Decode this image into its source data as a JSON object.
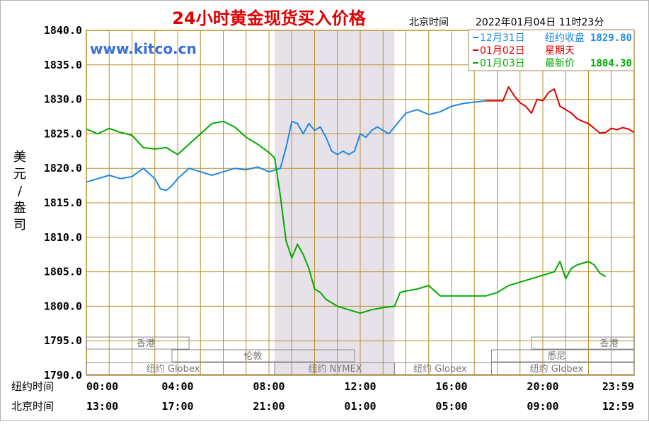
{
  "chart_data": {
    "type": "line",
    "title": "24小时黄金现货买入价格",
    "timestamp_label": "北京时间",
    "timestamp": "2022年01月04日 11时23分",
    "watermark": "www.kitco.cn",
    "ylabel": "美元/盎司",
    "ylim": [
      1790,
      1840
    ],
    "y_ticks": [
      "1840.0",
      "1835.0",
      "1830.0",
      "1825.0",
      "1820.0",
      "1815.0",
      "1810.0",
      "1805.0",
      "1800.0",
      "1795.0",
      "1790.0"
    ],
    "x_range_hours": [
      0,
      24
    ],
    "x_row_labels": [
      "纽约时间",
      "北京时间"
    ],
    "x_ticks_ny": [
      "00:00",
      "04:00",
      "08:00",
      "12:00",
      "16:00",
      "20:00",
      "23:59"
    ],
    "x_ticks_bj": [
      "13:00",
      "17:00",
      "21:00",
      "01:00",
      "05:00",
      "09:00",
      "12:59"
    ],
    "grid": true,
    "shaded_region_hours": [
      8.25,
      13.5
    ],
    "legend": {
      "placement": "top-right",
      "entries": [
        {
          "label": "12月31日",
          "note_label": "纽约收盘",
          "note_value": "1829.80",
          "color": "#1e88e5"
        },
        {
          "label": "01月02日",
          "note_label": "星期天",
          "note_value": "",
          "color": "#e00000"
        },
        {
          "label": "01月03日",
          "note_label": "最新价",
          "note_value": "1804.30",
          "color": "#00aa00"
        }
      ]
    },
    "market_bands": [
      {
        "label": "香港",
        "row": 0,
        "segments": [
          [
            0,
            4.5
          ],
          [
            19.5,
            24
          ]
        ]
      },
      {
        "label": "伦敦",
        "row": 1,
        "segments": [
          [
            3.75,
            11.75
          ],
          [
            17.75,
            24
          ]
        ]
      },
      {
        "label": "悉尼",
        "row": 1,
        "segments": []
      },
      {
        "label": "纽约 Globex",
        "row": 2,
        "segments": [
          [
            0,
            8.25
          ],
          [
            13.5,
            17.75
          ],
          [
            17.75,
            24
          ]
        ]
      },
      {
        "label": "纽约 NYMEX",
        "row": 2,
        "segments": [
          [
            8.25,
            13.5
          ]
        ]
      }
    ],
    "band_labels": [
      {
        "text": "香港",
        "hour": 2.6,
        "row": 0
      },
      {
        "text": "香港",
        "hour": 22.9,
        "row": 0
      },
      {
        "text": "伦敦",
        "hour": 7.3,
        "row": 1
      },
      {
        "text": "悉尼",
        "hour": 20.6,
        "row": 1
      },
      {
        "text": "纽约 Globex",
        "hour": 3.8,
        "row": 2
      },
      {
        "text": "纽约 NYMEX",
        "hour": 10.9,
        "row": 2
      },
      {
        "text": "纽约 Globex",
        "hour": 15.5,
        "row": 2
      },
      {
        "text": "纽约 Globex",
        "hour": 20.6,
        "row": 2
      }
    ],
    "series": [
      {
        "name": "12月31日",
        "color": "#1e88e5",
        "x": [
          0,
          0.5,
          1,
          1.5,
          2,
          2.5,
          3,
          3.25,
          3.5,
          3.75,
          4,
          4.5,
          5,
          5.5,
          6,
          6.5,
          7,
          7.5,
          8,
          8.5,
          8.75,
          9,
          9.25,
          9.5,
          9.75,
          10,
          10.25,
          10.5,
          10.75,
          11,
          11.25,
          11.5,
          11.75,
          12,
          12.25,
          12.5,
          12.75,
          13,
          13.25,
          13.5,
          13.75,
          14,
          14.5,
          15,
          15.5,
          16,
          16.5,
          17,
          17.5
        ],
        "values": [
          1818,
          1818.5,
          1819,
          1818.5,
          1818.8,
          1820,
          1818.5,
          1817,
          1816.8,
          1817.5,
          1818.5,
          1820,
          1819.5,
          1819,
          1819.5,
          1820,
          1819.8,
          1820.2,
          1819.5,
          1820,
          1823,
          1826.8,
          1826.5,
          1825,
          1826.5,
          1825.5,
          1826,
          1824.5,
          1822.5,
          1822,
          1822.5,
          1822,
          1822.5,
          1825,
          1824.5,
          1825.5,
          1826,
          1825.5,
          1825,
          1826,
          1827,
          1828,
          1828.5,
          1827.8,
          1828.2,
          1829,
          1829.4,
          1829.6,
          1829.8
        ]
      },
      {
        "name": "01月02日",
        "color": "#e00000",
        "x": [
          17.5,
          18,
          18.25,
          18.5,
          18.75,
          19,
          19.25,
          19.5,
          19.75,
          20,
          20.25,
          20.5,
          20.75,
          21,
          21.25,
          21.5,
          21.75,
          22,
          22.25,
          22.5,
          22.75,
          23,
          23.25,
          23.5,
          23.75,
          24
        ],
        "values": [
          1829.8,
          1829.8,
          1829.8,
          1831.8,
          1830.5,
          1829.5,
          1829,
          1828,
          1830,
          1829.8,
          1831,
          1831.5,
          1829,
          1828.5,
          1828,
          1827.2,
          1826.8,
          1826.5,
          1825.8,
          1825.1,
          1825.2,
          1825.8,
          1825.6,
          1825.9,
          1825.7,
          1825.2
        ]
      },
      {
        "name": "01月03日",
        "color": "#00aa00",
        "x": [
          0,
          0.5,
          1,
          1.5,
          2,
          2.5,
          3,
          3.5,
          4,
          4.5,
          5,
          5.5,
          6,
          6.5,
          7,
          7.5,
          8,
          8.25,
          8.5,
          8.75,
          9,
          9.25,
          9.5,
          9.75,
          10,
          10.25,
          10.5,
          10.75,
          11,
          11.5,
          12,
          12.5,
          13,
          13.5,
          13.75,
          14,
          14.5,
          15,
          15.5,
          16,
          16.5,
          17,
          17.5,
          18,
          18.5,
          19,
          19.5,
          20,
          20.5,
          20.75,
          21,
          21.25,
          21.5,
          22,
          22.25,
          22.5,
          22.75
        ],
        "values": [
          1825.7,
          1825,
          1825.8,
          1825.2,
          1824.8,
          1823,
          1822.8,
          1823,
          1822,
          1823.5,
          1825,
          1826.5,
          1826.8,
          1826,
          1824.5,
          1823.5,
          1822.3,
          1821.5,
          1816,
          1809.5,
          1807,
          1809,
          1807.5,
          1805.5,
          1802.5,
          1802,
          1801,
          1800.5,
          1800,
          1799.5,
          1799,
          1799.5,
          1799.8,
          1800,
          1802,
          1802.2,
          1802.5,
          1803,
          1801.5,
          1801.5,
          1801.5,
          1801.5,
          1801.5,
          1802,
          1803,
          1803.5,
          1804,
          1804.5,
          1805,
          1806.5,
          1804,
          1805.5,
          1806,
          1806.5,
          1806,
          1804.8,
          1804.3
        ]
      }
    ]
  }
}
